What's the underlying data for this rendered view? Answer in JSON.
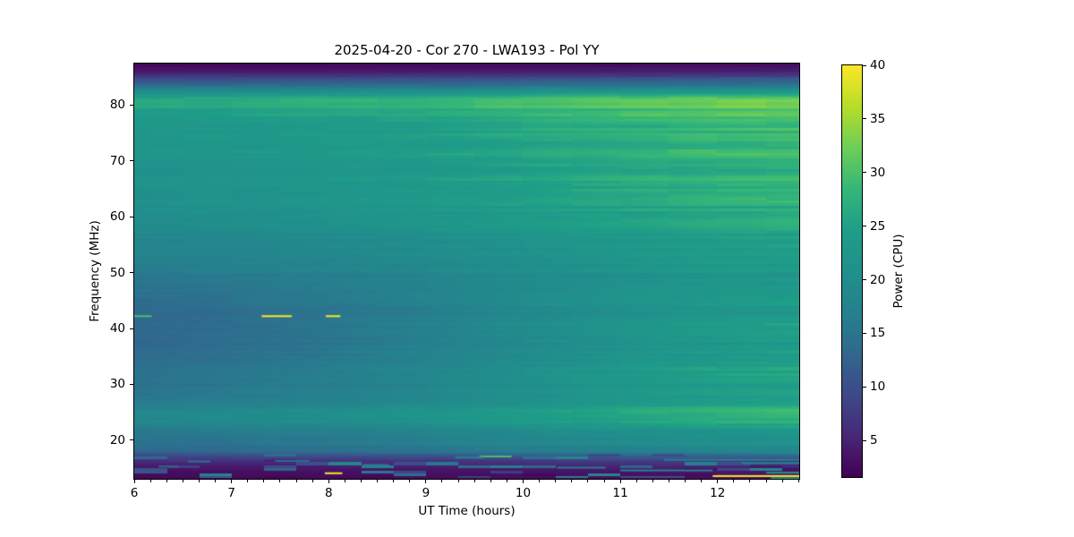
{
  "figure": {
    "background": "#ffffff"
  },
  "chart_data": {
    "type": "heatmap",
    "title": "2025-04-20 - Cor 270 - LWA193 - Pol YY",
    "xlabel": "UT Time (hours)",
    "ylabel": "Frequency (MHz)",
    "colorbar_label": "Power (CPU)",
    "x_range": [
      6.0,
      12.84
    ],
    "y_range": [
      13.1,
      87.4
    ],
    "x_ticks": [
      6,
      7,
      8,
      9,
      10,
      11,
      12
    ],
    "x_minor_tick_interval_hours": 0.16667,
    "y_ticks": [
      20,
      30,
      40,
      50,
      60,
      70,
      80
    ],
    "clim": [
      1.6,
      40
    ],
    "colorbar_ticks": [
      5,
      10,
      15,
      20,
      25,
      30,
      35,
      40
    ],
    "colormap": "viridis",
    "colormap_stops": [
      [
        0.0,
        "#440154"
      ],
      [
        0.1,
        "#482878"
      ],
      [
        0.2,
        "#3e4a89"
      ],
      [
        0.3,
        "#31688e"
      ],
      [
        0.4,
        "#26828e"
      ],
      [
        0.5,
        "#21918c"
      ],
      [
        0.6,
        "#1f9e89"
      ],
      [
        0.7,
        "#35b779"
      ],
      [
        0.8,
        "#6ece58"
      ],
      [
        0.9,
        "#b5de2b"
      ],
      [
        1.0,
        "#fde725"
      ]
    ],
    "frequency_profile_power_at_start": [
      [
        13.1,
        2.4
      ],
      [
        14.0,
        2.8
      ],
      [
        14.5,
        3.2
      ],
      [
        15.0,
        3.8
      ],
      [
        15.5,
        4.5
      ],
      [
        16.0,
        5.5
      ],
      [
        16.5,
        7.0
      ],
      [
        17.0,
        8.5
      ],
      [
        17.3,
        10.0
      ],
      [
        17.7,
        12.0
      ],
      [
        18.0,
        13.5
      ],
      [
        19.0,
        14.2
      ],
      [
        20.0,
        14.8
      ],
      [
        21.0,
        15.5
      ],
      [
        22.0,
        16.2
      ],
      [
        23.0,
        18.0
      ],
      [
        24.0,
        18.8
      ],
      [
        25.0,
        18.4
      ],
      [
        26.0,
        16.5
      ],
      [
        28.0,
        15.2
      ],
      [
        30.0,
        14.6
      ],
      [
        32.0,
        14.3
      ],
      [
        34.0,
        14.0
      ],
      [
        36.0,
        13.6
      ],
      [
        38.0,
        13.2
      ],
      [
        40.0,
        13.0
      ],
      [
        42.0,
        13.2
      ],
      [
        44.0,
        13.6
      ],
      [
        46.0,
        14.3
      ],
      [
        48.0,
        15.0
      ],
      [
        50.0,
        15.8
      ],
      [
        52.0,
        16.5
      ],
      [
        54.0,
        17.5
      ],
      [
        56.0,
        18.0
      ],
      [
        58.0,
        19.0
      ],
      [
        60.0,
        20.0
      ],
      [
        62.0,
        20.5
      ],
      [
        64.0,
        20.5
      ],
      [
        66.0,
        21.5
      ],
      [
        68.0,
        21.0
      ],
      [
        70.0,
        21.5
      ],
      [
        72.0,
        22.0
      ],
      [
        75.0,
        22.5
      ],
      [
        77.0,
        23.0
      ],
      [
        79.0,
        24.5
      ],
      [
        80.0,
        26.0
      ],
      [
        80.5,
        26.3
      ],
      [
        81.2,
        25.5
      ],
      [
        82.0,
        22.0
      ],
      [
        83.0,
        17.0
      ],
      [
        84.0,
        12.0
      ],
      [
        85.0,
        8.0
      ],
      [
        86.0,
        4.0
      ],
      [
        87.0,
        2.6
      ],
      [
        87.4,
        2.2
      ]
    ],
    "time_brightening_gain": [
      [
        6.0,
        0.0
      ],
      [
        7.0,
        0.08
      ],
      [
        8.0,
        0.18
      ],
      [
        9.0,
        0.33
      ],
      [
        10.0,
        0.55
      ],
      [
        11.0,
        0.75
      ],
      [
        12.0,
        0.92
      ],
      [
        12.84,
        1.0
      ]
    ],
    "frequency_gain_weight": [
      [
        13.1,
        0.3
      ],
      [
        18.0,
        0.4
      ],
      [
        25.0,
        0.55
      ],
      [
        30.0,
        0.7
      ],
      [
        36.0,
        0.85
      ],
      [
        40.0,
        0.88
      ],
      [
        45.0,
        0.7
      ],
      [
        50.0,
        0.45
      ],
      [
        60.0,
        0.33
      ],
      [
        70.0,
        0.3
      ],
      [
        78.0,
        0.25
      ],
      [
        84.0,
        0.15
      ],
      [
        87.4,
        0.1
      ]
    ],
    "stripe_amplitude_range": [
      0.025,
      0.1
    ],
    "rfi_segments": [
      {
        "freq_mhz": 42.2,
        "t_start": 6.0,
        "t_end": 6.18,
        "power": 30
      },
      {
        "freq_mhz": 42.2,
        "t_start": 7.31,
        "t_end": 7.62,
        "power": 41
      },
      {
        "freq_mhz": 42.2,
        "t_start": 7.97,
        "t_end": 8.12,
        "power": 41
      },
      {
        "freq_mhz": 14.1,
        "t_start": 7.96,
        "t_end": 8.14,
        "power": 41
      },
      {
        "freq_mhz": 17.1,
        "t_start": 9.55,
        "t_end": 9.88,
        "power": 30
      },
      {
        "freq_mhz": 16.9,
        "t_start": 9.3,
        "t_end": 9.6,
        "power": 18
      },
      {
        "freq_mhz": 16.2,
        "t_start": 6.55,
        "t_end": 6.78,
        "power": 15
      },
      {
        "freq_mhz": 15.3,
        "t_start": 6.25,
        "t_end": 6.45,
        "power": 13
      },
      {
        "freq_mhz": 16.3,
        "t_start": 7.45,
        "t_end": 7.8,
        "power": 14
      },
      {
        "freq_mhz": 15.6,
        "t_start": 8.35,
        "t_end": 8.62,
        "power": 15
      },
      {
        "freq_mhz": 17.5,
        "t_start": 10.1,
        "t_end": 10.4,
        "power": 14
      },
      {
        "freq_mhz": 15.1,
        "t_start": 10.35,
        "t_end": 10.85,
        "power": 16
      },
      {
        "freq_mhz": 14.6,
        "t_start": 11.0,
        "t_end": 11.95,
        "power": 17
      },
      {
        "freq_mhz": 16.5,
        "t_start": 11.45,
        "t_end": 12.84,
        "power": 16
      },
      {
        "freq_mhz": 15.9,
        "t_start": 12.25,
        "t_end": 12.84,
        "power": 18
      },
      {
        "freq_mhz": 13.6,
        "t_start": 11.95,
        "t_end": 12.84,
        "power": 40
      },
      {
        "freq_mhz": 14.2,
        "t_start": 12.5,
        "t_end": 12.84,
        "power": 22
      },
      {
        "freq_mhz": 13.2,
        "t_start": 12.55,
        "t_end": 12.84,
        "power": 24
      }
    ]
  }
}
